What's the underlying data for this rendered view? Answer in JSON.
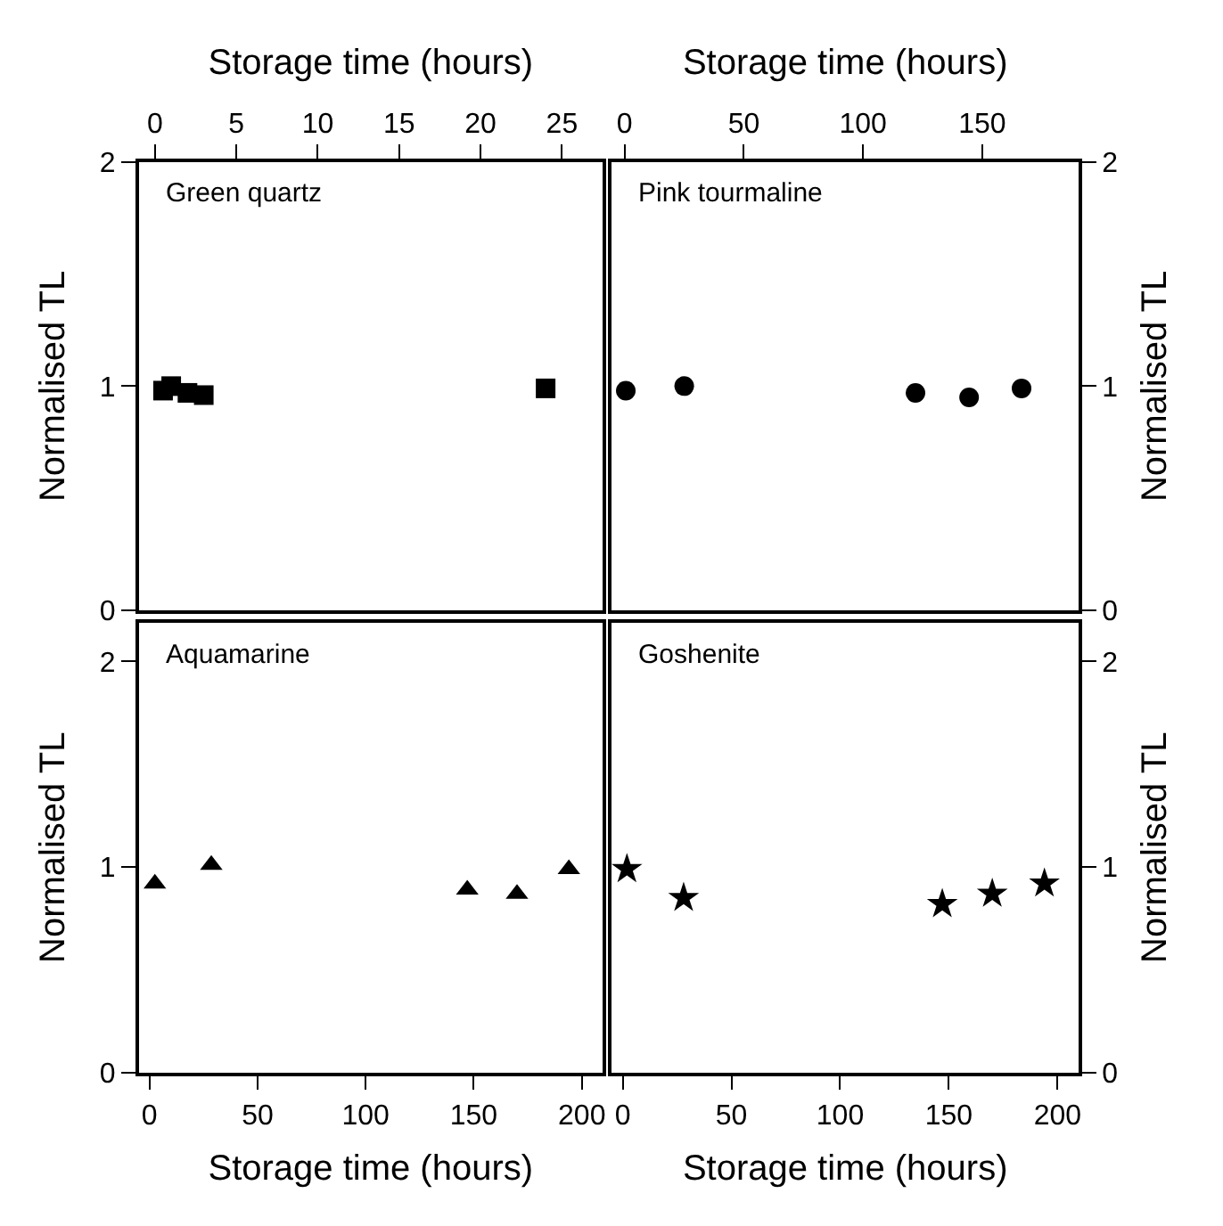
{
  "chart_data": [
    {
      "type": "scatter",
      "title": "Green quartz",
      "xlabel": "Storage time (hours)",
      "ylabel": "Normalised TL",
      "marker": "square",
      "xlim": [
        -1,
        27.5
      ],
      "xticks": [
        0,
        5,
        10,
        15,
        20,
        25
      ],
      "ylim": [
        0,
        2
      ],
      "yticks": [
        0,
        1,
        2
      ],
      "x": [
        0.5,
        1,
        2,
        3,
        24
      ],
      "series": [
        {
          "color": "#000000",
          "values": [
            0.98,
            1.0,
            0.97,
            0.96,
            0.99
          ]
        }
      ]
    },
    {
      "type": "scatter",
      "title": "Pink tourmaline",
      "xlabel": "Storage time (hours)",
      "ylabel": "Normalised TL",
      "marker": "circle",
      "xlim": [
        -5.5,
        190.6
      ],
      "xticks": [
        0,
        50,
        100,
        150
      ],
      "ylim": [
        0,
        2
      ],
      "yticks": [
        0,
        1,
        2
      ],
      "x": [
        0.5,
        25,
        122,
        144.5,
        166.5
      ],
      "series": [
        {
          "color": "#000000",
          "values": [
            0.98,
            1.0,
            0.97,
            0.95,
            0.99
          ]
        }
      ]
    },
    {
      "type": "scatter",
      "title": "Aquamarine",
      "xlabel": "Storage time (hours)",
      "ylabel": "Normalised TL",
      "marker": "triangle",
      "xlim": [
        -5,
        209.6
      ],
      "xticks": [
        0,
        50,
        100,
        150,
        200
      ],
      "ylim": [
        0,
        2.19
      ],
      "yticks": [
        0,
        1,
        2
      ],
      "x": [
        2.5,
        28.6,
        147,
        170,
        194
      ],
      "series": [
        {
          "color": "#000000",
          "values": [
            0.92,
            1.01,
            0.89,
            0.87,
            0.99
          ]
        }
      ]
    },
    {
      "type": "scatter",
      "title": "Goshenite",
      "xlabel": "Storage time (hours)",
      "ylabel": "Normalised TL",
      "marker": "star",
      "xlim": [
        -5.2,
        209.9
      ],
      "xticks": [
        0,
        50,
        100,
        150,
        200
      ],
      "ylim": [
        0,
        2.19
      ],
      "yticks": [
        0,
        1,
        2
      ],
      "x": [
        1.9,
        28,
        147,
        170,
        194
      ],
      "series": [
        {
          "color": "#000000",
          "values": [
            0.99,
            0.85,
            0.82,
            0.87,
            0.92
          ]
        }
      ]
    }
  ]
}
